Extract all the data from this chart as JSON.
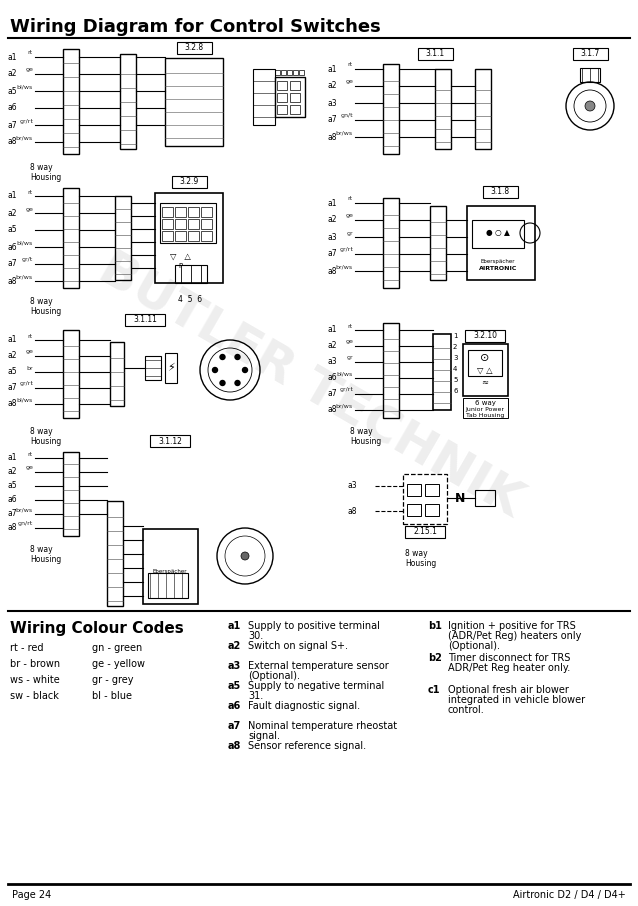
{
  "title": "Wiring Diagram for Control Switches",
  "page_num": "Page 24",
  "brand": "Airtronic D2 / D4 / D4+",
  "bg_color": "#ffffff",
  "title_color": "#000000",
  "watermark_text": "BUTLER TECHNIK",
  "wiring_colour_codes_title": "Wiring Colour Codes",
  "colour_codes_left": [
    "rt - red",
    "br - brown",
    "ws - white",
    "sw - black"
  ],
  "colour_codes_right": [
    "gn - green",
    "ge - yellow",
    "gr - grey",
    "bl - blue"
  ],
  "legend_items": [
    [
      "a1",
      "Supply to positive terminal 30."
    ],
    [
      "a2",
      "Switch on signal S+."
    ],
    [
      "a3",
      "External temperature sensor (Optional)."
    ],
    [
      "a5",
      "Supply to negative terminal 31."
    ],
    [
      "a6",
      "Fault diagnostic signal."
    ],
    [
      "a7",
      "Nominal temperature rheostat signal."
    ],
    [
      "a8",
      "Sensor reference signal."
    ],
    [
      "b1",
      "Ignition + positive for TRS (ADR/Pet Reg) heaters only (Optional)."
    ],
    [
      "b2",
      "Timer disconnect for TRS ADR/Pet Reg heater only."
    ],
    [
      "c1",
      "Optional fresh air blower integrated in vehicle blower control."
    ]
  ],
  "diagram_labels": {
    "box1": "3.2.8",
    "box2": "3.2.9",
    "box3": "3.1.1",
    "box4": "3.1.11",
    "box5": "3.1.12",
    "box6": "3.1.8",
    "box7": "3.2.10",
    "box8": "2.15.1"
  },
  "housing_label": "8 way\nHousing",
  "junior_power_label": "6 way\nJunior Power\nTab Housing"
}
